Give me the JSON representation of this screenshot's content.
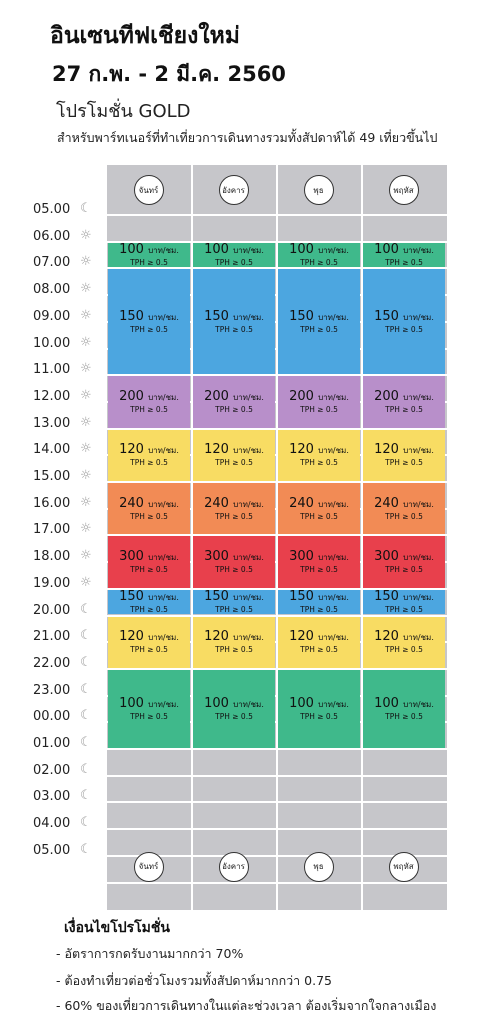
{
  "header": {
    "title": "อินเซนทีฟเชียงใหม่",
    "dates": "27 ก.พ. - 2 มี.ค. 2560",
    "promo": "โปรโมชั่น GOLD",
    "subtitle": "สำหรับพาร์ทเนอร์ที่ทำเที่ยวการเดินทางรวมทั้งสัปดาห์ได้ 49 เที่ยวขึ้นไป"
  },
  "days": [
    "จันทร์",
    "อังคาร",
    "พุธ",
    "พฤหัส"
  ],
  "times": [
    {
      "label": "05.00",
      "icon": "moon-icon",
      "glyph": "☾"
    },
    {
      "label": "06.00",
      "icon": "sun-icon",
      "glyph": "☼"
    },
    {
      "label": "07.00",
      "icon": "sun-icon",
      "glyph": "☼"
    },
    {
      "label": "08.00",
      "icon": "sun-icon",
      "glyph": "☼"
    },
    {
      "label": "09.00",
      "icon": "sun-icon",
      "glyph": "☼"
    },
    {
      "label": "10.00",
      "icon": "sun-icon",
      "glyph": "☼"
    },
    {
      "label": "11.00",
      "icon": "sun-icon",
      "glyph": "☼"
    },
    {
      "label": "12.00",
      "icon": "sun-icon",
      "glyph": "☼"
    },
    {
      "label": "13.00",
      "icon": "sun-icon",
      "glyph": "☼"
    },
    {
      "label": "14.00",
      "icon": "sun-icon",
      "glyph": "☼"
    },
    {
      "label": "15.00",
      "icon": "sun-icon",
      "glyph": "☼"
    },
    {
      "label": "16.00",
      "icon": "sun-icon",
      "glyph": "☼"
    },
    {
      "label": "17.00",
      "icon": "sun-icon",
      "glyph": "☼"
    },
    {
      "label": "18.00",
      "icon": "sun-icon",
      "glyph": "☼"
    },
    {
      "label": "19.00",
      "icon": "sun-icon",
      "glyph": "☼"
    },
    {
      "label": "20.00",
      "icon": "moon-icon",
      "glyph": "☾"
    },
    {
      "label": "21.00",
      "icon": "moon-icon",
      "glyph": "☾"
    },
    {
      "label": "22.00",
      "icon": "moon-icon",
      "glyph": "☾"
    },
    {
      "label": "23.00",
      "icon": "moon-icon",
      "glyph": "☾"
    },
    {
      "label": "00.00",
      "icon": "moon-icon",
      "glyph": "☾"
    },
    {
      "label": "01.00",
      "icon": "moon-icon",
      "glyph": "☾"
    },
    {
      "label": "02.00",
      "icon": "moon-icon",
      "glyph": "☾"
    },
    {
      "label": "03.00",
      "icon": "moon-icon",
      "glyph": "☾"
    },
    {
      "label": "04.00",
      "icon": "moon-icon",
      "glyph": "☾"
    },
    {
      "label": "05.00",
      "icon": "moon-icon",
      "glyph": "☾"
    }
  ],
  "bands": [
    {
      "start_hour": 6,
      "end_hour": 7,
      "amount": "100",
      "unit": "บาท/ชม.",
      "tph": "TPH ≥ 0.5",
      "color": "#3fb98b"
    },
    {
      "start_hour": 7,
      "end_hour": 11,
      "amount": "150",
      "unit": "บาท/ชม.",
      "tph": "TPH ≥ 0.5",
      "color": "#4ca6e0"
    },
    {
      "start_hour": 11,
      "end_hour": 13,
      "amount": "200",
      "unit": "บาท/ชม.",
      "tph": "TPH ≥ 0.5",
      "color": "#b88fca"
    },
    {
      "start_hour": 13,
      "end_hour": 15,
      "amount": "120",
      "unit": "บาท/ชม.",
      "tph": "TPH ≥ 0.5",
      "color": "#f8dc63"
    },
    {
      "start_hour": 15,
      "end_hour": 17,
      "amount": "240",
      "unit": "บาท/ชม.",
      "tph": "TPH ≥ 0.5",
      "color": "#f28b55"
    },
    {
      "start_hour": 17,
      "end_hour": 19,
      "amount": "300",
      "unit": "บาท/ชม.",
      "tph": "TPH ≥ 0.5",
      "color": "#e8404c"
    },
    {
      "start_hour": 19,
      "end_hour": 20,
      "amount": "150",
      "unit": "บาท/ชม.",
      "tph": "TPH ≥ 0.5",
      "color": "#4ca6e0"
    },
    {
      "start_hour": 20,
      "end_hour": 22,
      "amount": "120",
      "unit": "บาท/ชม.",
      "tph": "TPH ≥ 0.5",
      "color": "#f8dc63"
    },
    {
      "start_hour": 22,
      "end_hour": 25,
      "amount": "100",
      "unit": "บาท/ชม.",
      "tph": "TPH ≥ 0.5",
      "color": "#3fb98b"
    }
  ],
  "conditions": {
    "title": "เงื่อนไขโปรโมชั่น",
    "items": [
      "- อัตราการกดรับงานมากกว่า 70%",
      "- ต้องทำเที่ยวต่อชั่วโมงรวมทั้งสัปดาห์มากกว่า 0.75",
      "- 60% ของเที่ยวการเดินทางในแต่ละช่วงเวลา ต้องเริ่มจากใจกลางเมือง"
    ]
  }
}
